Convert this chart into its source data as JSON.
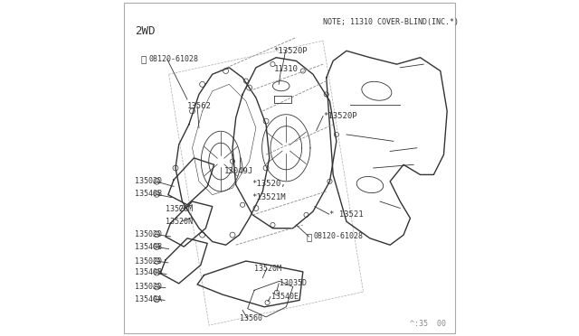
{
  "bg_color": "#ffffff",
  "line_color": "#333333",
  "text_color": "#333333",
  "title_text": "2WD",
  "note_text": "NOTE; 11310 COVER-BLIND(INC.*)",
  "watermark_text": "^:35  00",
  "fig_width": 6.4,
  "fig_height": 3.72,
  "dpi": 100
}
